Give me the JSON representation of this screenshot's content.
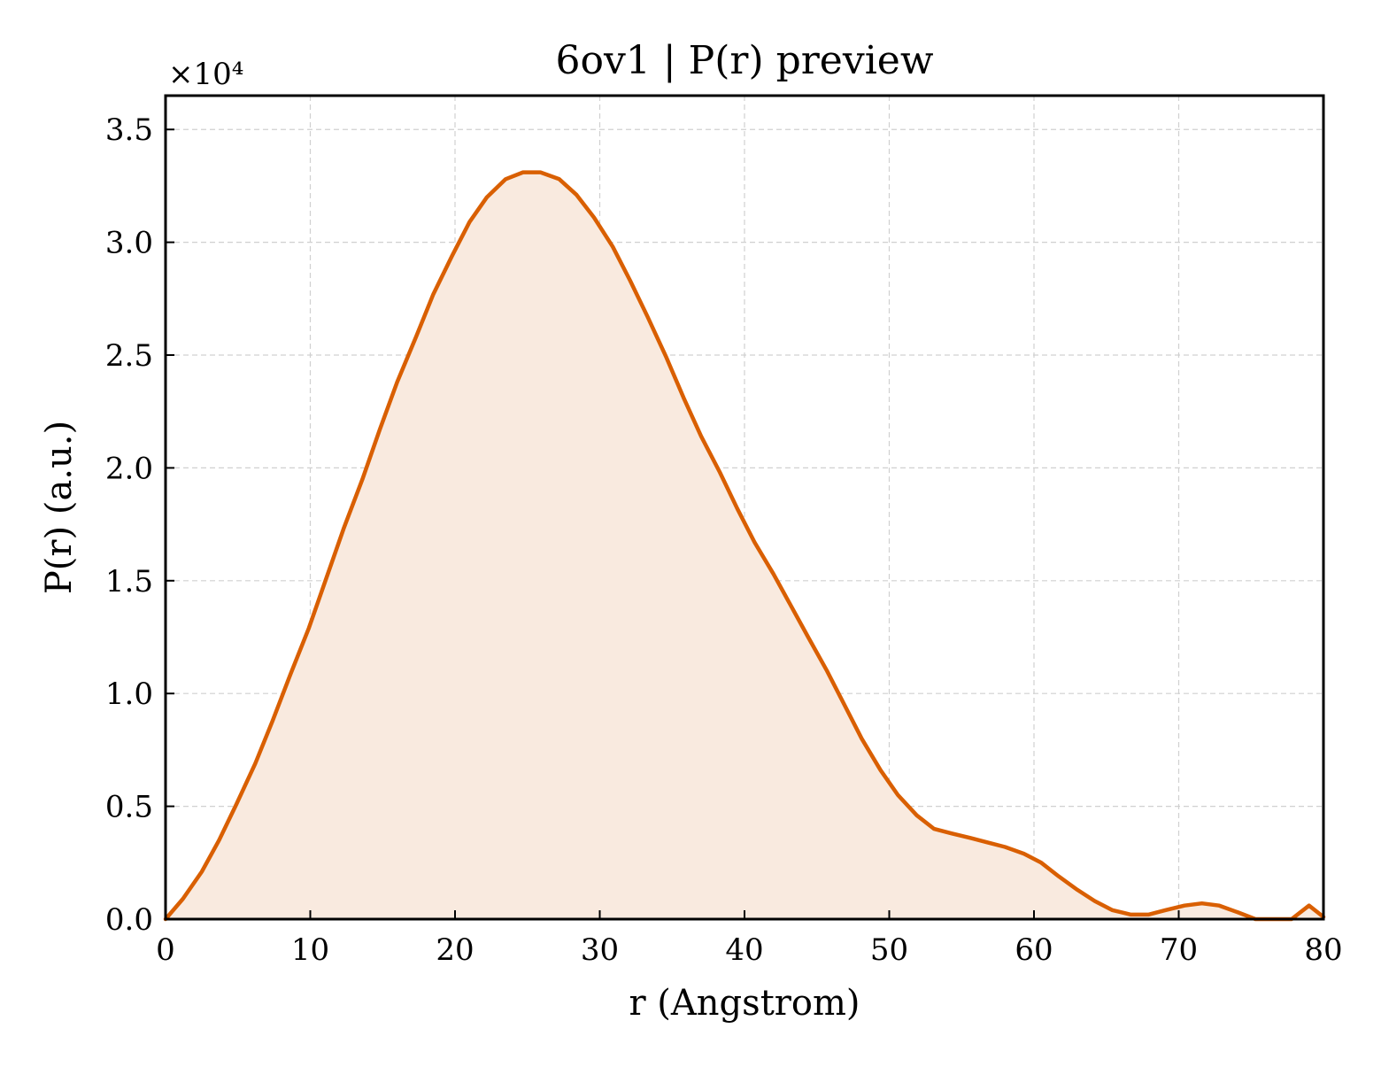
{
  "chart_data": {
    "type": "area",
    "title": "6ov1 | P(r) preview",
    "xlabel": "r (Angstrom)",
    "ylabel": "P(r) (a.u.)",
    "y_multiplier_label": "×10⁴",
    "xlim": [
      0,
      80
    ],
    "ylim": [
      0,
      3.65
    ],
    "y_scale_factor": 10000,
    "grid": true,
    "line_color": "#d95f02",
    "fill_color": "#f9eadf",
    "x_ticks": [
      0,
      10,
      20,
      30,
      40,
      50,
      60,
      70,
      80
    ],
    "x_tick_labels": [
      "0",
      "10",
      "20",
      "30",
      "40",
      "50",
      "60",
      "70",
      "80"
    ],
    "y_ticks": [
      0,
      0.5,
      1.0,
      1.5,
      2.0,
      2.5,
      3.0,
      3.5
    ],
    "y_tick_labels": [
      "0.0",
      "0.5",
      "1.0",
      "1.5",
      "2.0",
      "2.5",
      "3.0",
      "3.5"
    ],
    "series": [
      {
        "x": [
          0,
          1.2,
          2.5,
          3.7,
          4.9,
          6.2,
          7.4,
          8.6,
          9.9,
          11.1,
          12.3,
          13.6,
          14.8,
          16.0,
          17.3,
          18.5,
          19.8,
          21.0,
          22.2,
          23.5,
          24.7,
          25.9,
          27.2,
          28.4,
          29.6,
          30.9,
          32.1,
          33.3,
          34.6,
          35.8,
          37.0,
          38.3,
          39.5,
          40.7,
          42.0,
          43.2,
          44.4,
          45.7,
          46.9,
          48.1,
          49.4,
          50.6,
          51.9,
          53.1,
          54.3,
          55.6,
          56.8,
          58.0,
          59.3,
          60.5,
          61.7,
          63.0,
          64.2,
          65.4,
          66.7,
          67.9,
          69.1,
          70.4,
          71.6,
          72.8,
          74.1,
          75.3,
          76.5,
          77.8,
          79.0,
          80.0
        ],
        "y": [
          0.0,
          0.09,
          0.21,
          0.35,
          0.51,
          0.69,
          0.88,
          1.08,
          1.29,
          1.51,
          1.73,
          1.95,
          2.17,
          2.38,
          2.58,
          2.77,
          2.94,
          3.09,
          3.2,
          3.28,
          3.31,
          3.31,
          3.28,
          3.21,
          3.11,
          2.98,
          2.83,
          2.67,
          2.49,
          2.31,
          2.14,
          1.98,
          1.82,
          1.67,
          1.53,
          1.39,
          1.25,
          1.1,
          0.95,
          0.8,
          0.66,
          0.55,
          0.46,
          0.4,
          0.38,
          0.36,
          0.34,
          0.32,
          0.29,
          0.25,
          0.19,
          0.13,
          0.08,
          0.04,
          0.02,
          0.02,
          0.04,
          0.06,
          0.07,
          0.06,
          0.03,
          0.0,
          0.0,
          0.0,
          0.06,
          0.01
        ]
      }
    ]
  }
}
